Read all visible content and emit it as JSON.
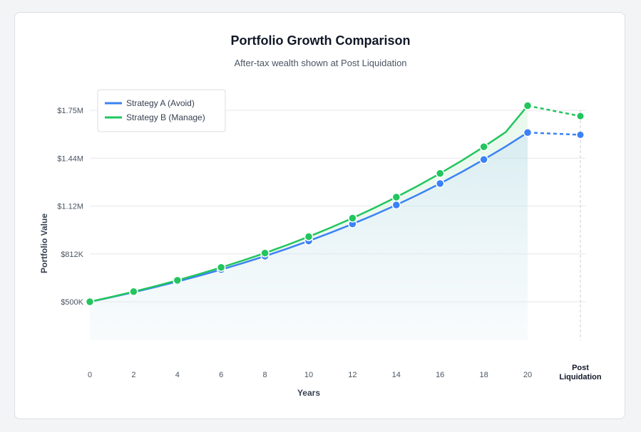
{
  "chart_data": {
    "type": "line",
    "title": "Portfolio Growth Comparison",
    "subtitle": "After-tax wealth shown at Post Liquidation",
    "xlabel": "Years",
    "ylabel": "Portfolio Value",
    "x_ticks": [
      "0",
      "2",
      "4",
      "6",
      "8",
      "10",
      "12",
      "14",
      "16",
      "18",
      "20",
      "Post Liquidation"
    ],
    "y_ticks": [
      "$500K",
      "$812K",
      "$1.12M",
      "$1.44M",
      "$1.75M"
    ],
    "y_tick_values": [
      500000,
      812500,
      1125000,
      1437500,
      1750000
    ],
    "ylim": [
      200000,
      1850000
    ],
    "grid": "horizontal",
    "legend_position": "top-left",
    "x": [
      0,
      1,
      2,
      3,
      4,
      5,
      6,
      7,
      8,
      9,
      10,
      11,
      12,
      13,
      14,
      15,
      16,
      17,
      18,
      19,
      20
    ],
    "post_liquidation_label": "Post Liquidation",
    "series": [
      {
        "name": "Strategy A (Avoid)",
        "color": "#3b82f6",
        "values": [
          500000,
          530000,
          562000,
          596000,
          632000,
          670000,
          710000,
          753000,
          798000,
          846000,
          897000,
          951000,
          1008000,
          1068000,
          1132000,
          1200000,
          1272000,
          1348000,
          1429000,
          1514000,
          1605000
        ],
        "post_liquidation": 1590000
      },
      {
        "name": "Strategy B (Manage)",
        "color": "#22c55e",
        "values": [
          500000,
          532000,
          566000,
          602000,
          640000,
          681000,
          724000,
          770000,
          818000,
          870000,
          925000,
          984000,
          1046000,
          1113000,
          1183000,
          1258000,
          1338000,
          1422000,
          1512000,
          1608000,
          1780000
        ],
        "post_liquidation": 1712000
      }
    ]
  }
}
